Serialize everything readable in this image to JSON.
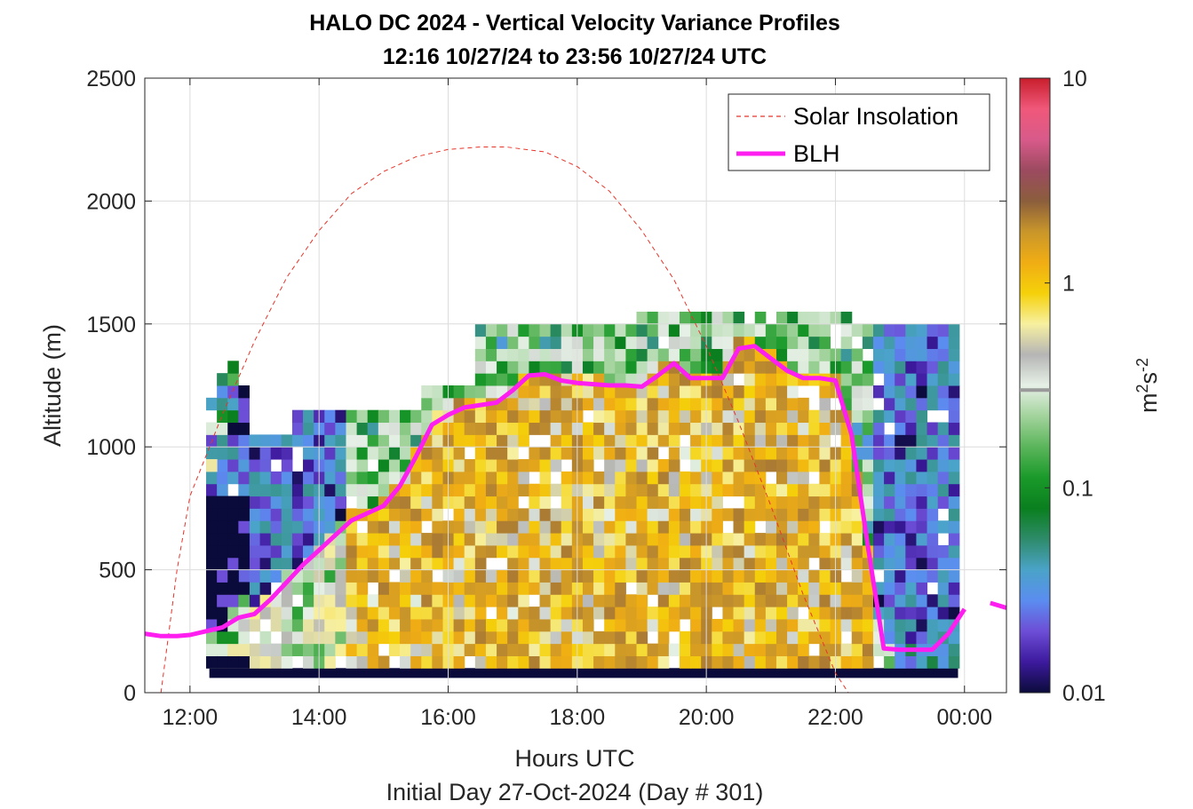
{
  "chart_data": {
    "type": "heatmap",
    "title": "HALO DC 2024 - Vertical Velocity Variance Profiles",
    "subtitle": "12:16 10/27/24 to 23:56 10/27/24  UTC",
    "xlabel": "Hours UTC",
    "xlabel2": "Initial Day 27-Oct-2024 (Day # 301)",
    "ylabel": "Altitude (m)",
    "xlim": [
      11.3,
      24.65
    ],
    "ylim": [
      0,
      2500
    ],
    "x_ticks": [
      12,
      14,
      16,
      18,
      20,
      22,
      24
    ],
    "x_tick_labels": [
      "12:00",
      "14:00",
      "16:00",
      "18:00",
      "20:00",
      "22:00",
      "00:00"
    ],
    "y_ticks": [
      0,
      500,
      1000,
      1500,
      2000,
      2500
    ],
    "y_tick_labels": [
      "0",
      "500",
      "1000",
      "1500",
      "2000",
      "2500"
    ],
    "grid": true,
    "legend_position": "top-right",
    "colorbar": {
      "label": "m2s-2",
      "label_base": "m",
      "label_sup1": "2",
      "label_mid": "s",
      "label_sup2": "-2",
      "scale": "log",
      "limits": [
        0.01,
        10
      ],
      "ticks": [
        0.01,
        0.1,
        1,
        10
      ],
      "tick_labels": [
        "0.01",
        "0.1",
        "1",
        "10"
      ],
      "colormap": [
        "#0b0b3b",
        "#3d1a9e",
        "#6d4ed6",
        "#5b8df0",
        "#4aa3c8",
        "#2e8b6a",
        "#0a7f1e",
        "#1a9a2a",
        "#5bb55b",
        "#a2d39c",
        "#e6f0e6",
        "#b5b5b5",
        "#f7f0a0",
        "#f5d10a",
        "#f0ad14",
        "#c9962a",
        "#8b5e3c",
        "#9c4a60",
        "#d85a8a",
        "#f0587a",
        "#c81e2c"
      ]
    },
    "series": [
      {
        "name": "Solar Insolation",
        "style": "dashed",
        "color": "#e8342a",
        "x": [
          11.3,
          11.55,
          11.8,
          12.0,
          12.5,
          13.0,
          13.5,
          14.0,
          14.5,
          15.0,
          15.5,
          16.0,
          16.5,
          16.9,
          17.5,
          18.0,
          18.5,
          19.0,
          19.5,
          20.0,
          20.5,
          21.0,
          21.5,
          22.0,
          22.2,
          22.5,
          23.0,
          24.0,
          24.65
        ],
        "y": [
          0,
          0,
          500,
          800,
          1130,
          1430,
          1690,
          1880,
          2030,
          2120,
          2180,
          2210,
          2220,
          2220,
          2200,
          2140,
          2040,
          1880,
          1680,
          1410,
          1100,
          760,
          400,
          80,
          0,
          0,
          0,
          0,
          0
        ]
      },
      {
        "name": "BLH",
        "style": "solid",
        "color": "#ff1ef0",
        "x": [
          11.3,
          11.55,
          11.8,
          12.0,
          12.25,
          12.5,
          12.75,
          13.0,
          13.25,
          13.5,
          13.75,
          14.0,
          14.25,
          14.5,
          14.75,
          15.0,
          15.25,
          15.5,
          15.75,
          16.0,
          16.25,
          16.5,
          16.75,
          17.0,
          17.25,
          17.5,
          17.75,
          18.0,
          18.25,
          18.5,
          18.75,
          19.0,
          19.25,
          19.5,
          19.75,
          20.0,
          20.25,
          20.5,
          20.75,
          21.0,
          21.25,
          21.5,
          21.75,
          22.0,
          22.25,
          22.5,
          22.75,
          23.0,
          23.25,
          23.5,
          23.75,
          24.0
        ],
        "y": [
          240,
          230,
          230,
          235,
          250,
          265,
          305,
          320,
          380,
          450,
          520,
          580,
          640,
          700,
          730,
          760,
          840,
          960,
          1090,
          1130,
          1160,
          1170,
          1180,
          1230,
          1290,
          1295,
          1270,
          1260,
          1255,
          1250,
          1250,
          1245,
          1290,
          1340,
          1280,
          1280,
          1280,
          1400,
          1410,
          1360,
          1310,
          1280,
          1280,
          1270,
          1050,
          600,
          180,
          175,
          175,
          175,
          240,
          340
        ]
      },
      {
        "name": "",
        "style": "solid",
        "color": "#ff1ef0",
        "x": [
          24.4,
          24.65
        ],
        "y": [
          365,
          345
        ]
      }
    ],
    "heatmap_grid": {
      "x_start": 12.25,
      "x_step": 0.1667,
      "y_start": 100,
      "y_step": 50,
      "columns": [
        {
          "col": 0,
          "values": [
            0.01,
            0.3,
            0.2,
            0.02,
            0.01,
            0.01,
            0.01,
            0.01,
            0.01,
            0.01,
            0.01,
            0.01,
            0.01,
            0.01,
            null,
            null,
            0.6,
            null,
            null,
            0.3,
            null,
            0.04,
            null,
            null,
            null
          ]
        },
        {
          "col": 1,
          "values": [
            0.01,
            0.3,
            0.1,
            0.01,
            0.01,
            0.02,
            0.01,
            0.02,
            0.01,
            0.01,
            0.01,
            0.01,
            0.01,
            0.01,
            null,
            null,
            null,
            null,
            null,
            0.3,
            0.1,
            0.05,
            0.03,
            0.06,
            null
          ]
        },
        {
          "col": 2,
          "values": [
            0.01,
            0.6,
            0.1,
            0.3,
            0.2,
            0.02,
            0.01,
            0.01,
            0.02,
            0.01,
            0.01,
            0.01,
            0.01,
            0.01,
            null,
            null,
            null,
            null,
            null,
            0.01,
            0.08,
            0.04,
            0.02,
            0.15,
            0.08
          ]
        },
        {
          "col": 3,
          "values": [
            0.01,
            0.6,
            0.3,
            0.4,
            0.3,
            0.15,
            0.01,
            null,
            0.01,
            0.01,
            0.01,
            0.02,
            0.01,
            0.01,
            null,
            null,
            null,
            null,
            null,
            0.01,
            0.02,
            0.02,
            0.01,
            null,
            null
          ]
        }
      ]
    }
  },
  "legend": {
    "items": [
      {
        "label": "Solar Insolation",
        "style": "dashed",
        "color": "#e8342a"
      },
      {
        "label": "BLH",
        "style": "solid",
        "color": "#ff1ef0"
      }
    ]
  }
}
